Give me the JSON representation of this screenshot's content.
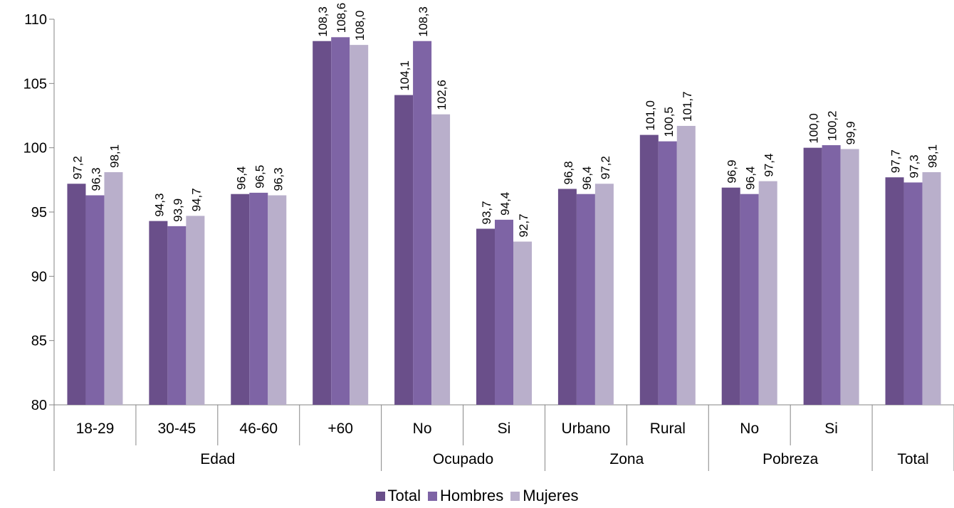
{
  "chart_data": {
    "type": "bar",
    "ylim": [
      80,
      110
    ],
    "yticks": [
      "80",
      "85",
      "90",
      "95",
      "100",
      "105",
      "110"
    ],
    "grid": false,
    "legend_position": "bottom",
    "groups": [
      {
        "label": "Edad",
        "categories": [
          "18-29",
          "30-45",
          "46-60",
          "+60"
        ]
      },
      {
        "label": "Ocupado",
        "categories": [
          "No",
          "Si"
        ]
      },
      {
        "label": "Zona",
        "categories": [
          "Urbano",
          "Rural"
        ]
      },
      {
        "label": "Pobreza",
        "categories": [
          "No",
          "Si"
        ]
      },
      {
        "label": "Total",
        "categories": [
          ""
        ]
      }
    ],
    "series": [
      {
        "name": "Total",
        "color": "#6a4f8a",
        "values": [
          97.2,
          94.3,
          96.4,
          108.3,
          104.1,
          93.7,
          96.8,
          101.0,
          96.9,
          100.0,
          97.7
        ],
        "labels": [
          "97,2",
          "94,3",
          "96,4",
          "108,3",
          "104,1",
          "93,7",
          "96,8",
          "101,0",
          "96,9",
          "100,0",
          "97,7"
        ]
      },
      {
        "name": "Hombres",
        "color": "#7e64a5",
        "values": [
          96.3,
          93.9,
          96.5,
          108.6,
          108.3,
          94.4,
          96.4,
          100.5,
          96.4,
          100.2,
          97.3
        ],
        "labels": [
          "96,3",
          "93,9",
          "96,5",
          "108,6",
          "108,3",
          "94,4",
          "96,4",
          "100,5",
          "96,4",
          "100,2",
          "97,3"
        ]
      },
      {
        "name": "Mujeres",
        "color": "#b9afcb",
        "values": [
          98.1,
          94.7,
          96.3,
          108.0,
          102.6,
          92.7,
          97.2,
          101.7,
          97.4,
          99.9,
          98.1
        ],
        "labels": [
          "98,1",
          "94,7",
          "96,3",
          "108,0",
          "102,6",
          "92,7",
          "97,2",
          "101,7",
          "97,4",
          "99,9",
          "98,1"
        ]
      }
    ]
  }
}
